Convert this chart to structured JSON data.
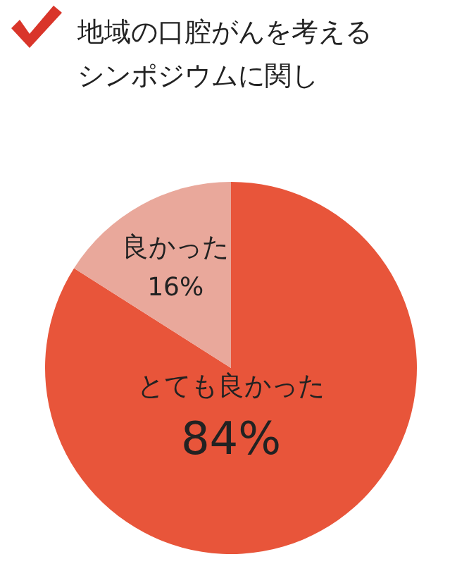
{
  "chart_data": {
    "type": "pie",
    "title": "地域の口腔がんを考えるシンポジウムに関し",
    "categories": [
      "とても良かった",
      "良かった"
    ],
    "values": [
      84,
      16
    ],
    "colors": [
      "#e8553a",
      "#e9a89b"
    ],
    "value_labels": [
      "84%",
      "16%"
    ],
    "legend": false
  }
}
